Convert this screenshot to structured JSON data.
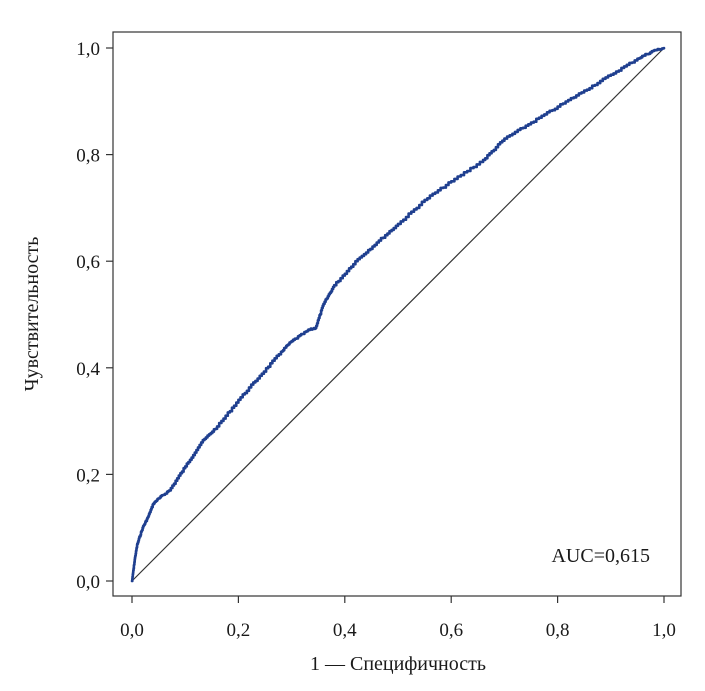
{
  "chart_data": {
    "type": "line",
    "title": "",
    "xlabel": "1 — Специфичность",
    "ylabel": "Чувствительность",
    "xlim": [
      0,
      1
    ],
    "ylim": [
      0,
      1
    ],
    "x_ticks": [
      "0,0",
      "0,2",
      "0,4",
      "0,6",
      "0,8",
      "1,0"
    ],
    "y_ticks": [
      "0,0",
      "0,2",
      "0,4",
      "0,6",
      "0,8",
      "1,0"
    ],
    "grid": false,
    "annotation": "AUC=0,615",
    "colors": {
      "roc": "#1f3f8f",
      "reference": "#333333",
      "frame": "#333333"
    },
    "series": [
      {
        "style": "roc-curve",
        "x": [
          0.0,
          0.005,
          0.01,
          0.02,
          0.03,
          0.04,
          0.05,
          0.07,
          0.1,
          0.13,
          0.16,
          0.2,
          0.24,
          0.28,
          0.3,
          0.33,
          0.345,
          0.36,
          0.38,
          0.42,
          0.46,
          0.5,
          0.55,
          0.6,
          0.66,
          0.7,
          0.75,
          0.8,
          0.85,
          0.9,
          0.95,
          0.98,
          1.0
        ],
        "y": [
          0.0,
          0.04,
          0.07,
          0.1,
          0.12,
          0.145,
          0.155,
          0.17,
          0.215,
          0.26,
          0.29,
          0.34,
          0.385,
          0.43,
          0.45,
          0.47,
          0.475,
          0.52,
          0.555,
          0.6,
          0.635,
          0.67,
          0.715,
          0.75,
          0.79,
          0.83,
          0.86,
          0.89,
          0.92,
          0.95,
          0.98,
          0.995,
          1.0
        ]
      },
      {
        "style": "reference-diagonal",
        "x": [
          0,
          1
        ],
        "y": [
          0,
          1
        ]
      }
    ]
  }
}
